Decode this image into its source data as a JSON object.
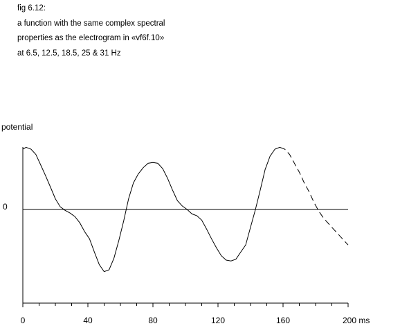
{
  "caption": {
    "line1": "fig 6.12:",
    "line2": "a function with the same complex spectral",
    "line3": "properties as the electrogram in «vf6f.10»",
    "line4": "at 6.5, 12.5, 18.5, 25 & 31 Hz"
  },
  "chart_data": {
    "type": "line",
    "title": "",
    "ylabel": "potential",
    "xlabel": "",
    "x_unit": "ms",
    "zero_label": "0",
    "xlim": [
      0,
      200
    ],
    "ylim": [
      -1.0,
      1.0
    ],
    "x_ticks": [
      0,
      40,
      80,
      120,
      160,
      200
    ],
    "x_tick_labels": [
      "0",
      "40",
      "80",
      "120",
      "160",
      "200 ms"
    ],
    "grid": false,
    "series": [
      {
        "style": "solid",
        "points": [
          [
            0,
            0.68
          ],
          [
            2,
            0.7
          ],
          [
            5,
            0.68
          ],
          [
            8,
            0.62
          ],
          [
            11,
            0.5
          ],
          [
            14,
            0.38
          ],
          [
            17,
            0.25
          ],
          [
            20,
            0.12
          ],
          [
            23,
            0.03
          ],
          [
            26,
            -0.01
          ],
          [
            29,
            -0.04
          ],
          [
            32,
            -0.08
          ],
          [
            35,
            -0.15
          ],
          [
            38,
            -0.25
          ],
          [
            41,
            -0.33
          ],
          [
            44,
            -0.48
          ],
          [
            47,
            -0.62
          ],
          [
            50,
            -0.7
          ],
          [
            53,
            -0.68
          ],
          [
            56,
            -0.55
          ],
          [
            59,
            -0.35
          ],
          [
            62,
            -0.13
          ],
          [
            65,
            0.12
          ],
          [
            68,
            0.3
          ],
          [
            71,
            0.4
          ],
          [
            74,
            0.47
          ],
          [
            77,
            0.52
          ],
          [
            80,
            0.53
          ],
          [
            83,
            0.52
          ],
          [
            86,
            0.46
          ],
          [
            89,
            0.35
          ],
          [
            92,
            0.22
          ],
          [
            95,
            0.1
          ],
          [
            98,
            0.04
          ],
          [
            101,
            0.0
          ],
          [
            104,
            -0.05
          ],
          [
            107,
            -0.07
          ],
          [
            110,
            -0.12
          ],
          [
            113,
            -0.22
          ],
          [
            116,
            -0.33
          ],
          [
            119,
            -0.43
          ],
          [
            122,
            -0.52
          ],
          [
            125,
            -0.57
          ],
          [
            128,
            -0.58
          ],
          [
            131,
            -0.56
          ],
          [
            134,
            -0.48
          ],
          [
            137,
            -0.4
          ],
          [
            140,
            -0.2
          ],
          [
            143,
            0.0
          ],
          [
            146,
            0.22
          ],
          [
            149,
            0.45
          ],
          [
            152,
            0.6
          ],
          [
            155,
            0.68
          ],
          [
            158,
            0.7
          ]
        ]
      },
      {
        "style": "dashed",
        "points": [
          [
            158,
            0.7
          ],
          [
            161,
            0.68
          ],
          [
            164,
            0.62
          ],
          [
            167,
            0.52
          ],
          [
            170,
            0.42
          ],
          [
            173,
            0.3
          ],
          [
            176,
            0.2
          ],
          [
            179,
            0.08
          ],
          [
            182,
            -0.02
          ],
          [
            185,
            -0.1
          ],
          [
            188,
            -0.16
          ],
          [
            191,
            -0.22
          ],
          [
            194,
            -0.28
          ],
          [
            197,
            -0.34
          ],
          [
            200,
            -0.4
          ]
        ]
      }
    ]
  }
}
